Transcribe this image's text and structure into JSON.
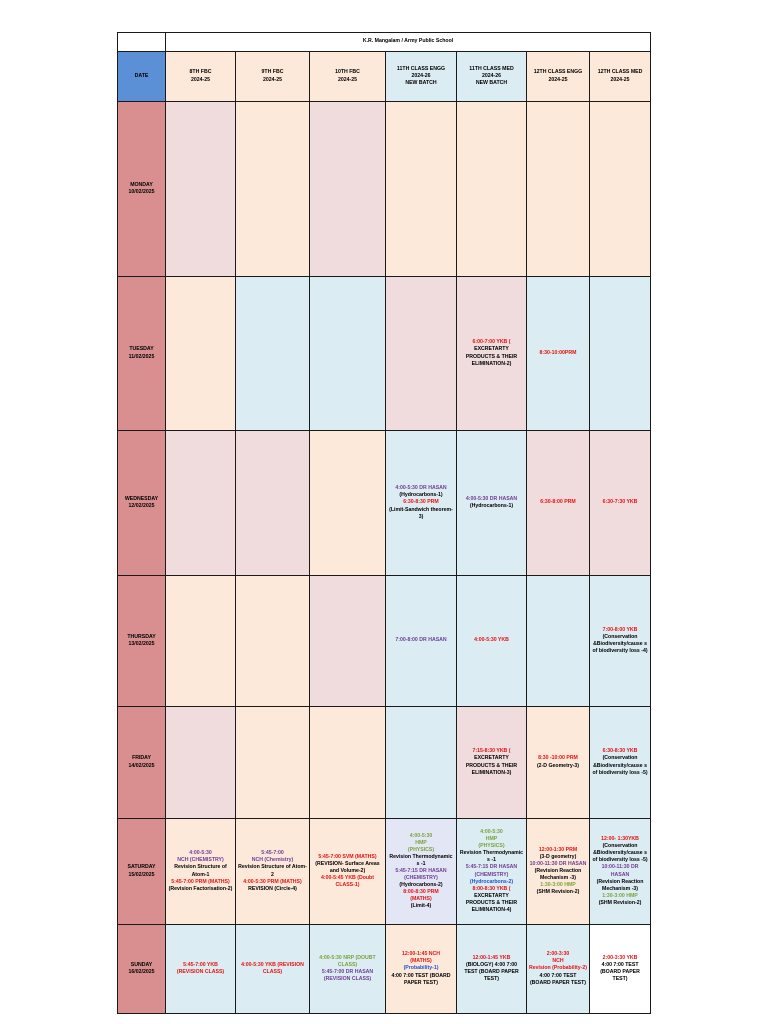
{
  "title": "K.R. Mangalam / Army Public School",
  "date_header": "DATE",
  "columns": [
    {
      "name": "8TH FBC",
      "year": "2024-25",
      "batch": ""
    },
    {
      "name": "9TH FBC",
      "year": "2024-25",
      "batch": ""
    },
    {
      "name": "10TH FBC",
      "year": "2024-25",
      "batch": ""
    },
    {
      "name": "11TH CLASS ENGG",
      "year": "2024-26",
      "batch": "NEW BATCH"
    },
    {
      "name": "11TH CLASS MED",
      "year": "2024-26",
      "batch": "NEW BATCH"
    },
    {
      "name": "12TH CLASS ENGG",
      "year": "2024-25",
      "batch": ""
    },
    {
      "name": "12TH CLASS MED",
      "year": "2024-25",
      "batch": ""
    }
  ],
  "days": [
    {
      "day": "MONDAY",
      "date": "10/02/2025",
      "cells": [
        [],
        [],
        [],
        [],
        [],
        [],
        []
      ]
    },
    {
      "day": "TUESDAY",
      "date": "11/02/2025",
      "cells": [
        [],
        [],
        [],
        [],
        [
          {
            "t": "6:00-7:00 YKB (",
            "c": "r"
          },
          {
            "t": "EXCRETARTY PRODUCTS & THEIR ELIMINATION-2)",
            "c": "k"
          }
        ],
        [
          {
            "t": "8:30-10:00PRM",
            "c": "r"
          }
        ],
        []
      ]
    },
    {
      "day": "WEDNESDAY",
      "date": "12/02/2025",
      "cells": [
        [],
        [],
        [],
        [
          {
            "t": "4:00-5:30 DR HASAN",
            "c": "p"
          },
          {
            "t": "(Hydrocarbons-1)",
            "c": "k"
          },
          {
            "t": "6:30-8:30 PRM",
            "c": "r"
          },
          {
            "t": "(Limit-Sandwich theorem-3)",
            "c": "k"
          }
        ],
        [
          {
            "t": "4:00-5:30 DR HASAN",
            "c": "p"
          },
          {
            "t": "(Hydrocarbons-1)",
            "c": "k"
          }
        ],
        [
          {
            "t": "6:30-8:00 PRM",
            "c": "r"
          }
        ],
        [
          {
            "t": "6:30-7:30 YKB",
            "c": "r"
          }
        ]
      ]
    },
    {
      "day": "THURSDAY",
      "date": "13/02/2025",
      "cells": [
        [],
        [],
        [],
        [
          {
            "t": "7:00-8:00 DR HASAN",
            "c": "p"
          }
        ],
        [
          {
            "t": "4:00-5:30 YKB",
            "c": "r"
          }
        ],
        [],
        [
          {
            "t": "7:00-8:00 YKB",
            "c": "r"
          },
          {
            "t": "(Conservation &Biodiversity/cause s of biodiversity loss -4)",
            "c": "k"
          }
        ]
      ]
    },
    {
      "day": "FRIDAY",
      "date": "14/02/2025",
      "cells": [
        [],
        [],
        [],
        [],
        [
          {
            "t": "7:15-8:30 YKB (",
            "c": "r"
          },
          {
            "t": "EXCRETARTY PRODUCTS & THEIR ELIMINATION-3)",
            "c": "k"
          }
        ],
        [
          {
            "t": "8:30 -10:00 PRM",
            "c": "r"
          },
          {
            "t": "(2-D Geometry-3)",
            "c": "k"
          }
        ],
        [
          {
            "t": "6:30-8:30 YKB",
            "c": "r"
          },
          {
            "t": "(Conservation &Biodiversity/cause s of biodiversity loss -5)",
            "c": "k"
          }
        ]
      ]
    },
    {
      "day": "SATURDAY",
      "date": "15/02/2025",
      "cells": [
        [
          {
            "t": "4:00-5:30",
            "c": "p"
          },
          {
            "t": "NCH (CHEMISTRY)",
            "c": "p"
          },
          {
            "t": "Revision Structure of Atom-1",
            "c": "k"
          },
          {
            "t": "5:45-7:00 PRM (MATHS)",
            "c": "r"
          },
          {
            "t": "(Revision Factorisation-2)",
            "c": "k"
          }
        ],
        [
          {
            "t": "5:45-7:00",
            "c": "p"
          },
          {
            "t": "NCH (Chemistry)",
            "c": "p"
          },
          {
            "t": "Revision Structure of Atom-2",
            "c": "k"
          },
          {
            "t": "4:00-5:30 PRM (MATHS)",
            "c": "r"
          },
          {
            "t": "REVISION (Circle-4)",
            "c": "k"
          }
        ],
        [
          {
            "t": "5:45-7:00 SVM (MATHS)",
            "c": "r"
          },
          {
            "t": "(REVISION- Surface Areas and Volume-2)",
            "c": "k"
          },
          {
            "t": "4:00-5:45 YKB (Doubt CLASS-1)",
            "c": "r"
          }
        ],
        [
          {
            "t": "4:00-5:30",
            "c": "g"
          },
          {
            "t": "HMP",
            "c": "g"
          },
          {
            "t": "(PHYSICS)",
            "c": "g"
          },
          {
            "t": "Revision Thermodynamic s -1",
            "c": "k"
          },
          {
            "t": "5:45-7:15 DR HASAN",
            "c": "p"
          },
          {
            "t": "(CHEMISTRY)",
            "c": "p"
          },
          {
            "t": "(Hydrocarbons-2)",
            "c": "k"
          },
          {
            "t": "8:00-8:30 PRM",
            "c": "r"
          },
          {
            "t": "(MATHS)",
            "c": "r"
          },
          {
            "t": "(Limit-4)",
            "c": "k"
          }
        ],
        [
          {
            "t": "4:00-5:30",
            "c": "g"
          },
          {
            "t": "HMP",
            "c": "g"
          },
          {
            "t": "(PHYSICS)",
            "c": "g"
          },
          {
            "t": "Revision Thermodynamic s -1",
            "c": "k"
          },
          {
            "t": "5:45-7:15 DR HASAN",
            "c": "p"
          },
          {
            "t": "(CHEMISTRY)",
            "c": "p"
          },
          {
            "t": "(Hydrocarbons-2)",
            "c": "b"
          },
          {
            "t": "8:00-8:30 YKB (",
            "c": "r"
          },
          {
            "t": "EXCRETARTY PRODUCTS & THEIR ELIMINATION-4)",
            "c": "k"
          }
        ],
        [
          {
            "t": "12:00-1:30 PRM",
            "c": "r"
          },
          {
            "t": "(3-D geometry)",
            "c": "k"
          },
          {
            "t": "10:00-11:30 DR HASAN",
            "c": "p"
          },
          {
            "t": "(Revision Reaction Mechanism -3)",
            "c": "k"
          },
          {
            "t": "1:30-3:00 HMP",
            "c": "g"
          },
          {
            "t": "(SHM Revision-2)",
            "c": "k"
          }
        ],
        [
          {
            "t": "12:00- 1:30YKB",
            "c": "r"
          },
          {
            "t": "(Conservation &Biodiversity/cause s of biodiversity loss -5)",
            "c": "k"
          },
          {
            "t": "10:00-11:30 DR HASAN",
            "c": "p"
          },
          {
            "t": "(Revision Reaction Mechanism -3)",
            "c": "k"
          },
          {
            "t": "1:30-3:00 HMP",
            "c": "g"
          },
          {
            "t": "(SHM Revision-2)",
            "c": "k"
          }
        ]
      ]
    },
    {
      "day": "SUNDAY",
      "date": "16/02/2025",
      "cells": [
        [
          {
            "t": "5:45-7:00 YKB",
            "c": "r"
          },
          {
            "t": "(REVISION CLASS)",
            "c": "r"
          }
        ],
        [
          {
            "t": "4:00-5:30 YKB (REVISION CLASS)",
            "c": "r"
          }
        ],
        [
          {
            "t": "4:00-5:30 NRP (DOUBT CLASS)",
            "c": "g"
          },
          {
            "t": "5:45-7:00 DR HASAN (REVISION CLASS)",
            "c": "p"
          }
        ],
        [
          {
            "t": "12:00-1:45 NCH",
            "c": "r"
          },
          {
            "t": "(MATHS)",
            "c": "r"
          },
          {
            "t": "(Probability-1)",
            "c": "b"
          },
          {
            "t": "4:00 7:00 TEST (BOARD PAPER TEST)",
            "c": "k"
          }
        ],
        [
          {
            "t": "12:00-1:45 YKB",
            "c": "r"
          },
          {
            "t": "(BIOLOGY) 4:00 7:00 TEST (BOARD PAPER TEST)",
            "c": "k"
          }
        ],
        [
          {
            "t": "2:00-3:30",
            "c": "r"
          },
          {
            "t": "NCH",
            "c": "r"
          },
          {
            "t": "Revision (Probability-2)",
            "c": "r"
          },
          {
            "t": "4:00 7:00 TEST (BOARD PAPER TEST)",
            "c": "k"
          }
        ],
        [
          {
            "t": "2:00-3:30 YKB",
            "c": "r"
          },
          {
            "t": "4:00 7:00 TEST (BOARD PAPER TEST)",
            "c": "k"
          }
        ]
      ]
    }
  ],
  "cell_colors": [
    [
      "pink",
      "peach",
      "pink",
      "peach",
      "peach",
      "peach",
      "peach"
    ],
    [
      "peach",
      "blue",
      "blue",
      "pink",
      "pink",
      "blue",
      "blue"
    ],
    [
      "pink",
      "pink",
      "peach",
      "blue",
      "blue",
      "pink",
      "pink"
    ],
    [
      "peach",
      "peach",
      "pink",
      "blue",
      "blue",
      "blue",
      "blue"
    ],
    [
      "pink",
      "peach",
      "peach",
      "blue",
      "pink",
      "peach",
      "blue"
    ],
    [
      "peach",
      "peach",
      "peach",
      "lav",
      "blue",
      "peach",
      "blue"
    ],
    [
      "blue",
      "blue",
      "blue",
      "peach",
      "blue",
      "blue",
      "white"
    ]
  ],
  "colors": {
    "date_header": "#5b8fd6",
    "day_cell": "#d98f8f",
    "pink": "#f0dcdc",
    "peach": "#fde9da",
    "blue": "#dcecf3",
    "red_text": "#e81010",
    "purple_text": "#6e3d96",
    "green_text": "#79a33a"
  }
}
